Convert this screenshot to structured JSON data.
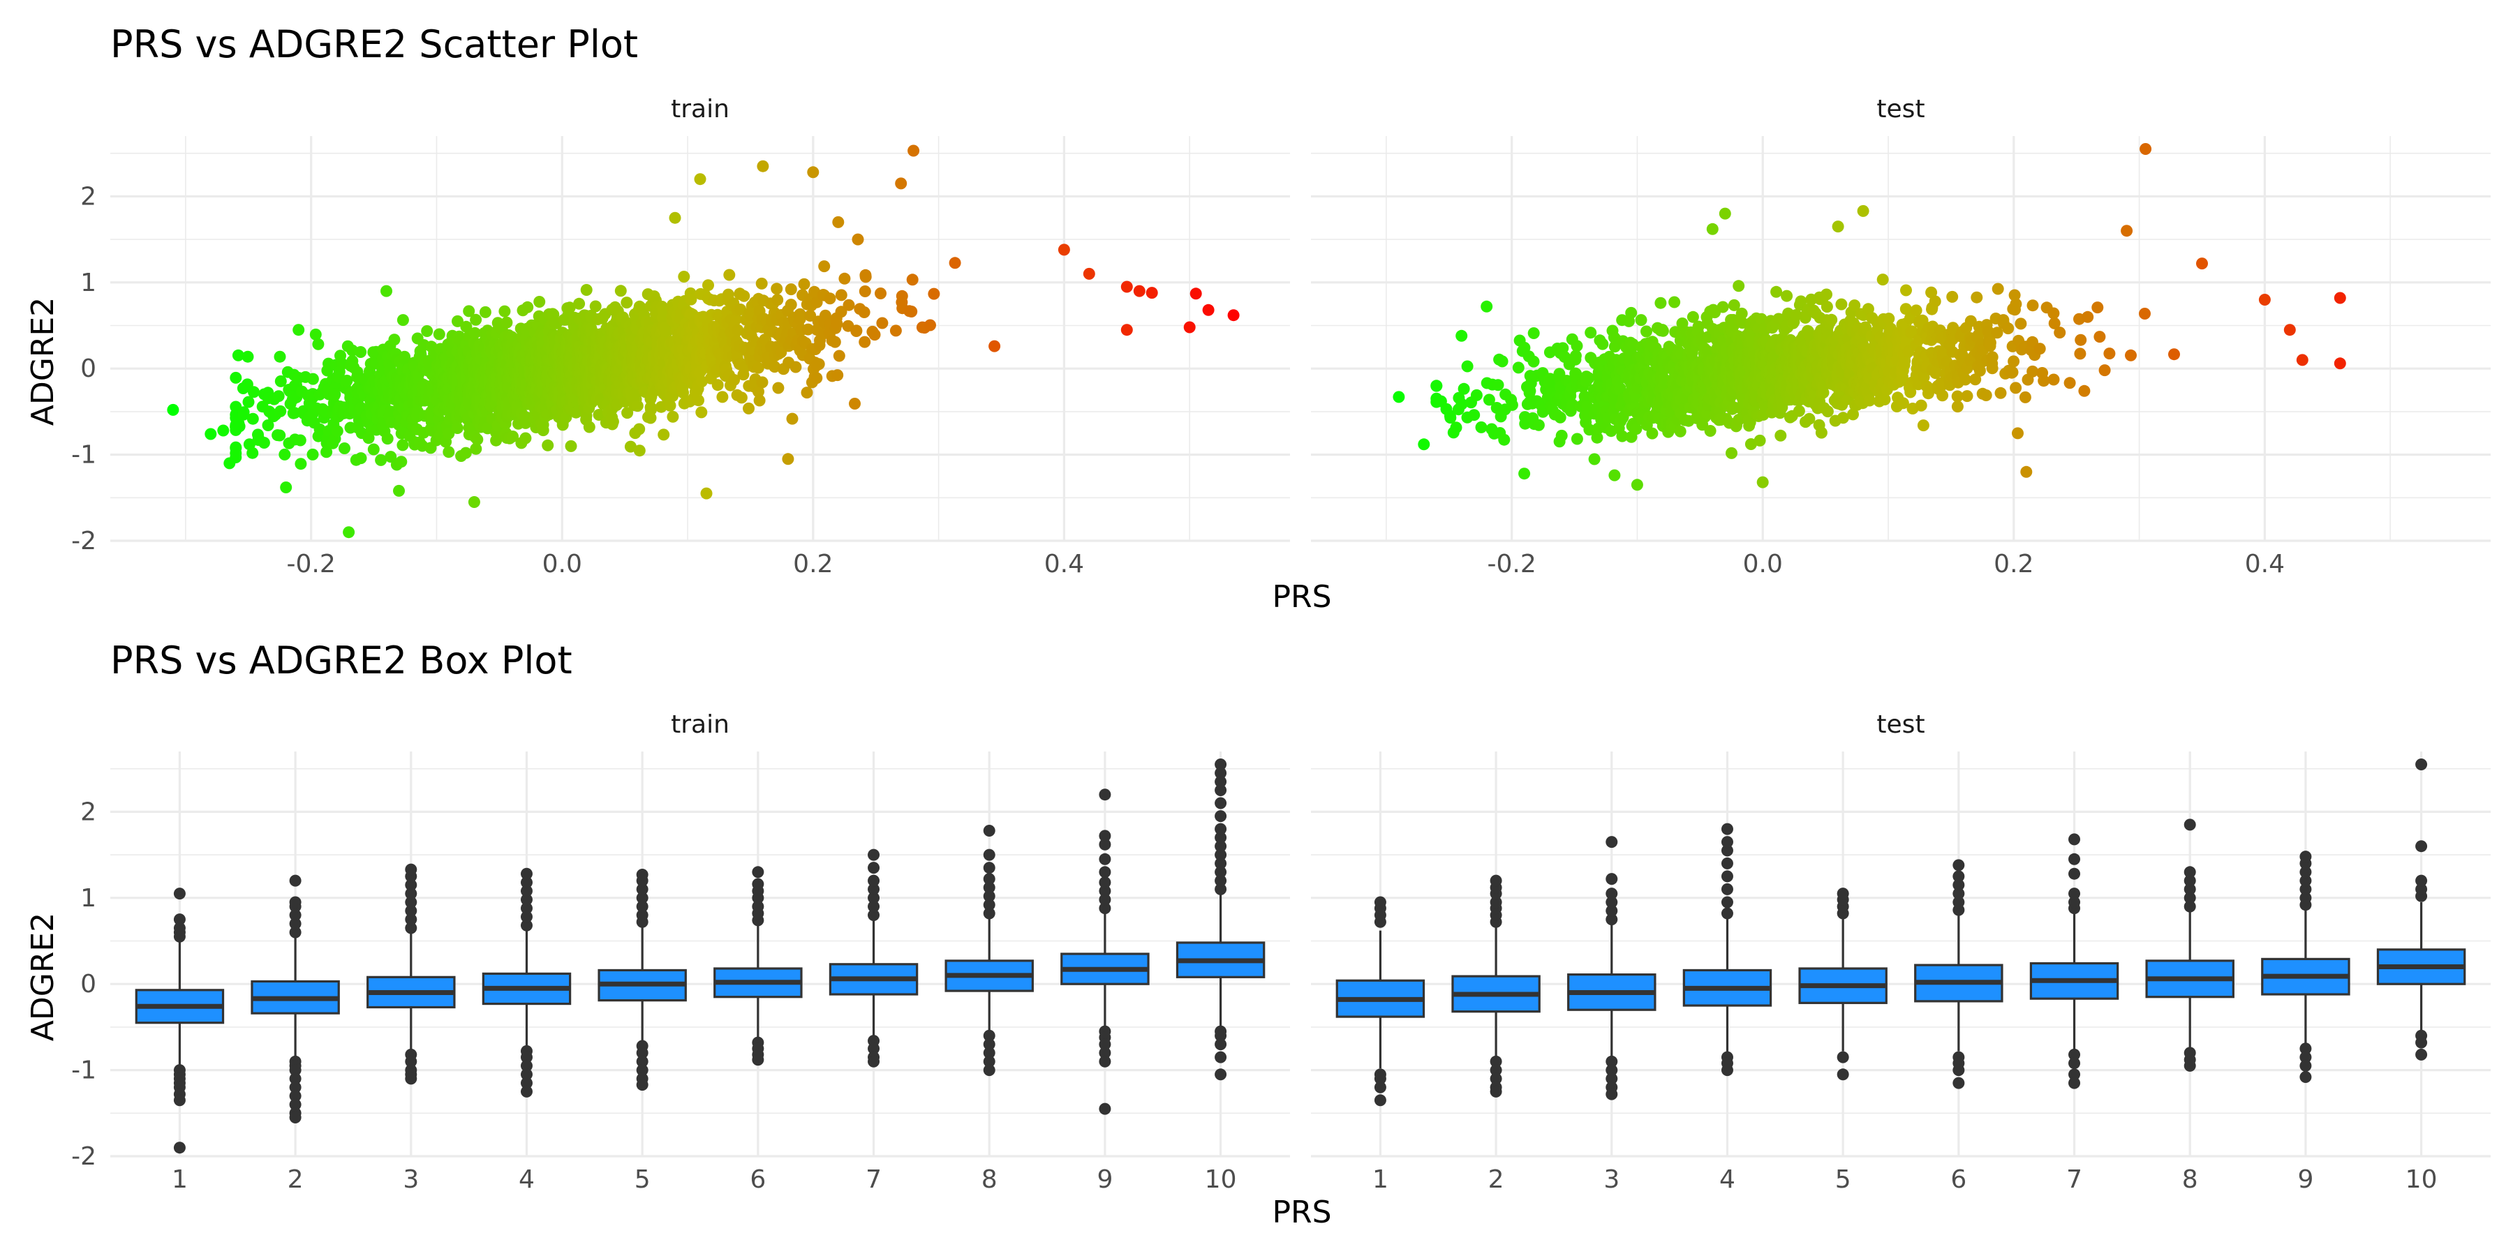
{
  "chart_data": [
    {
      "type": "scatter",
      "title": "PRS vs ADGRE2 Scatter Plot",
      "xlabel": "PRS",
      "ylabel": "ADGRE2",
      "xlim": [
        -0.36,
        0.58
      ],
      "ylim": [
        -2.0,
        2.7
      ],
      "x_ticks": [
        "-0.2",
        "0.0",
        "0.2",
        "0.4"
      ],
      "y_ticks": [
        "-2",
        "-1",
        "0",
        "1",
        "2"
      ],
      "grid": true,
      "color_scale": {
        "low": "#00ff00",
        "mid": "#bbbb00",
        "high": "#ff0000",
        "mapped_to": "PRS"
      },
      "facets": [
        {
          "panel": "train",
          "cloud": {
            "n": 2600,
            "x_center": 0.0,
            "x_sd": 0.1,
            "slope": 2.1,
            "intercept": 0.0,
            "y_noise_sd": 0.3
          },
          "points": [
            {
              "x": -0.31,
              "y": -0.48
            },
            {
              "x": -0.28,
              "y": -0.76
            },
            {
              "x": -0.27,
              "y": -0.72
            },
            {
              "x": -0.26,
              "y": -0.68
            },
            {
              "x": -0.265,
              "y": -1.1
            },
            {
              "x": -0.22,
              "y": -1.38
            },
            {
              "x": -0.17,
              "y": -1.9
            },
            {
              "x": -0.13,
              "y": -1.42
            },
            {
              "x": -0.07,
              "y": -1.55
            },
            {
              "x": 0.115,
              "y": -1.45
            },
            {
              "x": 0.18,
              "y": -1.05
            },
            {
              "x": 0.11,
              "y": 2.2
            },
            {
              "x": 0.16,
              "y": 2.35
            },
            {
              "x": 0.2,
              "y": 2.28
            },
            {
              "x": 0.27,
              "y": 2.15
            },
            {
              "x": 0.28,
              "y": 2.53
            },
            {
              "x": 0.22,
              "y": 1.7
            },
            {
              "x": 0.09,
              "y": 1.75
            },
            {
              "x": 0.45,
              "y": 0.95
            },
            {
              "x": 0.46,
              "y": 0.9
            },
            {
              "x": 0.47,
              "y": 0.88
            },
            {
              "x": 0.45,
              "y": 0.45
            },
            {
              "x": 0.5,
              "y": 0.48
            },
            {
              "x": 0.505,
              "y": 0.87
            },
            {
              "x": 0.515,
              "y": 0.68
            },
            {
              "x": 0.535,
              "y": 0.62
            },
            {
              "x": 0.42,
              "y": 1.1
            },
            {
              "x": 0.4,
              "y": 1.38
            },
            {
              "x": -0.21,
              "y": 0.45
            },
            {
              "x": -0.14,
              "y": 0.9
            }
          ]
        },
        {
          "panel": "test",
          "cloud": {
            "n": 1700,
            "x_center": 0.0,
            "x_sd": 0.1,
            "slope": 1.5,
            "intercept": 0.0,
            "y_noise_sd": 0.3
          },
          "points": [
            {
              "x": -0.29,
              "y": -0.33
            },
            {
              "x": -0.27,
              "y": -0.88
            },
            {
              "x": -0.24,
              "y": 0.38
            },
            {
              "x": -0.22,
              "y": 0.72
            },
            {
              "x": -0.19,
              "y": -1.22
            },
            {
              "x": -0.1,
              "y": -1.35
            },
            {
              "x": -0.04,
              "y": 1.62
            },
            {
              "x": -0.03,
              "y": 1.8
            },
            {
              "x": 0.06,
              "y": 1.65
            },
            {
              "x": 0.08,
              "y": 1.83
            },
            {
              "x": 0.29,
              "y": 1.6
            },
            {
              "x": 0.305,
              "y": 2.55
            },
            {
              "x": 0.35,
              "y": 1.22
            },
            {
              "x": 0.42,
              "y": 0.45
            },
            {
              "x": 0.46,
              "y": 0.82
            },
            {
              "x": 0.46,
              "y": 0.06
            },
            {
              "x": 0.43,
              "y": 0.1
            },
            {
              "x": 0.4,
              "y": 0.8
            },
            {
              "x": 0.21,
              "y": -1.2
            },
            {
              "x": 0.0,
              "y": -1.32
            }
          ]
        }
      ]
    },
    {
      "type": "box",
      "title": "PRS vs ADGRE2 Box Plot",
      "xlabel": "PRS",
      "ylabel": "ADGRE2",
      "ylim": [
        -2.0,
        2.7
      ],
      "categories": [
        "1",
        "2",
        "3",
        "4",
        "5",
        "6",
        "7",
        "8",
        "9",
        "10"
      ],
      "y_ticks": [
        "-2",
        "-1",
        "0",
        "1",
        "2"
      ],
      "fill": "#1e90ff",
      "grid": true,
      "facets": [
        {
          "panel": "train",
          "boxes": [
            {
              "q1": -0.45,
              "median": -0.26,
              "q3": -0.07,
              "whisker_low": -0.98,
              "whisker_high": 0.5,
              "outliers": [
                -1.0,
                -1.05,
                -1.1,
                -1.15,
                -1.2,
                -1.28,
                -1.35,
                -1.9,
                0.55,
                0.6,
                0.65,
                0.75,
                1.05
              ]
            },
            {
              "q1": -0.34,
              "median": -0.17,
              "q3": 0.03,
              "whisker_low": -0.88,
              "whisker_high": 0.58,
              "outliers": [
                -0.9,
                -0.95,
                -1.0,
                -1.1,
                -1.2,
                -1.3,
                -1.4,
                -1.5,
                -1.55,
                0.6,
                0.7,
                0.8,
                0.9,
                0.95,
                1.2
              ]
            },
            {
              "q1": -0.27,
              "median": -0.1,
              "q3": 0.08,
              "whisker_low": -0.8,
              "whisker_high": 0.62,
              "outliers": [
                -0.82,
                -0.9,
                -1.0,
                -1.05,
                -1.1,
                0.65,
                0.75,
                0.85,
                0.95,
                1.05,
                1.15,
                1.25,
                1.33
              ]
            },
            {
              "q1": -0.23,
              "median": -0.05,
              "q3": 0.12,
              "whisker_low": -0.76,
              "whisker_high": 0.65,
              "outliers": [
                -0.78,
                -0.85,
                -0.95,
                -1.05,
                -1.15,
                -1.25,
                0.68,
                0.78,
                0.88,
                0.98,
                1.08,
                1.18,
                1.28
              ]
            },
            {
              "q1": -0.19,
              "median": 0.0,
              "q3": 0.16,
              "whisker_low": -0.7,
              "whisker_high": 0.7,
              "outliers": [
                -0.72,
                -0.8,
                -0.9,
                -1.0,
                -1.1,
                -1.17,
                0.72,
                0.8,
                0.9,
                1.0,
                1.1,
                1.2,
                1.27
              ]
            },
            {
              "q1": -0.15,
              "median": 0.02,
              "q3": 0.18,
              "whisker_low": -0.66,
              "whisker_high": 0.72,
              "outliers": [
                -0.68,
                -0.75,
                -0.82,
                -0.88,
                0.74,
                0.82,
                0.9,
                1.0,
                1.08,
                1.16,
                1.3
              ]
            },
            {
              "q1": -0.12,
              "median": 0.06,
              "q3": 0.23,
              "whisker_low": -0.64,
              "whisker_high": 0.78,
              "outliers": [
                -0.66,
                -0.75,
                -0.85,
                -0.9,
                0.8,
                0.9,
                1.0,
                1.1,
                1.2,
                1.35,
                1.5
              ]
            },
            {
              "q1": -0.08,
              "median": 0.1,
              "q3": 0.27,
              "whisker_low": -0.58,
              "whisker_high": 0.8,
              "outliers": [
                -0.6,
                -0.7,
                -0.8,
                -0.9,
                -1.0,
                0.82,
                0.92,
                1.02,
                1.12,
                1.22,
                1.35,
                1.5,
                1.78
              ]
            },
            {
              "q1": 0.0,
              "median": 0.17,
              "q3": 0.35,
              "whisker_low": -0.52,
              "whisker_high": 0.85,
              "outliers": [
                -0.55,
                -0.62,
                -0.7,
                -0.8,
                -0.9,
                -1.45,
                0.88,
                0.98,
                1.08,
                1.18,
                1.3,
                1.45,
                1.62,
                1.72,
                2.2
              ]
            },
            {
              "q1": 0.08,
              "median": 0.27,
              "q3": 0.48,
              "whisker_low": -0.5,
              "whisker_high": 1.05,
              "outliers": [
                -0.55,
                -0.6,
                -0.7,
                -0.85,
                -1.05,
                1.1,
                1.2,
                1.3,
                1.4,
                1.5,
                1.6,
                1.7,
                1.8,
                1.95,
                2.1,
                2.25,
                2.35,
                2.45,
                2.55
              ]
            }
          ]
        },
        {
          "panel": "test",
          "boxes": [
            {
              "q1": -0.38,
              "median": -0.18,
              "q3": 0.04,
              "whisker_low": -0.98,
              "whisker_high": 0.62,
              "outliers": [
                -1.05,
                -1.1,
                -1.2,
                -1.35,
                0.72,
                0.8,
                0.88,
                0.95
              ]
            },
            {
              "q1": -0.32,
              "median": -0.12,
              "q3": 0.09,
              "whisker_low": -0.88,
              "whisker_high": 0.68,
              "outliers": [
                -0.9,
                -1.0,
                -1.1,
                -1.2,
                -1.25,
                0.72,
                0.8,
                0.88,
                0.95,
                1.05,
                1.12,
                1.2
              ]
            },
            {
              "q1": -0.3,
              "median": -0.1,
              "q3": 0.11,
              "whisker_low": -0.86,
              "whisker_high": 0.72,
              "outliers": [
                -0.9,
                -1.0,
                -1.1,
                -1.2,
                -1.28,
                0.75,
                0.85,
                0.95,
                1.05,
                1.22,
                1.65
              ]
            },
            {
              "q1": -0.25,
              "median": -0.05,
              "q3": 0.16,
              "whisker_low": -0.8,
              "whisker_high": 0.78,
              "outliers": [
                -0.85,
                -0.92,
                -1.0,
                0.82,
                0.95,
                1.1,
                1.25,
                1.4,
                1.55,
                1.65,
                1.8
              ]
            },
            {
              "q1": -0.22,
              "median": -0.02,
              "q3": 0.18,
              "whisker_low": -0.78,
              "whisker_high": 0.78,
              "outliers": [
                -0.85,
                -1.05,
                0.82,
                0.9,
                0.98,
                1.05
              ]
            },
            {
              "q1": -0.2,
              "median": 0.02,
              "q3": 0.22,
              "whisker_low": -0.78,
              "whisker_high": 0.82,
              "outliers": [
                -0.85,
                -0.92,
                -1.0,
                -1.15,
                0.86,
                0.95,
                1.05,
                1.15,
                1.25,
                1.38
              ]
            },
            {
              "q1": -0.17,
              "median": 0.04,
              "q3": 0.24,
              "whisker_low": -0.76,
              "whisker_high": 0.84,
              "outliers": [
                -0.82,
                -0.92,
                -1.05,
                -1.15,
                0.88,
                0.95,
                1.05,
                1.28,
                1.45,
                1.68
              ]
            },
            {
              "q1": -0.15,
              "median": 0.06,
              "q3": 0.27,
              "whisker_low": -0.74,
              "whisker_high": 0.86,
              "outliers": [
                -0.8,
                -0.88,
                -0.95,
                0.9,
                1.0,
                1.1,
                1.2,
                1.3,
                1.85
              ]
            },
            {
              "q1": -0.12,
              "median": 0.09,
              "q3": 0.29,
              "whisker_low": -0.7,
              "whisker_high": 0.88,
              "outliers": [
                -0.75,
                -0.85,
                -0.95,
                -1.08,
                0.92,
                1.0,
                1.1,
                1.2,
                1.3,
                1.4,
                1.48
              ]
            },
            {
              "q1": 0.0,
              "median": 0.2,
              "q3": 0.4,
              "whisker_low": -0.55,
              "whisker_high": 0.95,
              "outliers": [
                -0.6,
                -0.68,
                -0.82,
                1.02,
                1.1,
                1.2,
                1.6,
                2.55
              ]
            }
          ]
        }
      ]
    }
  ]
}
